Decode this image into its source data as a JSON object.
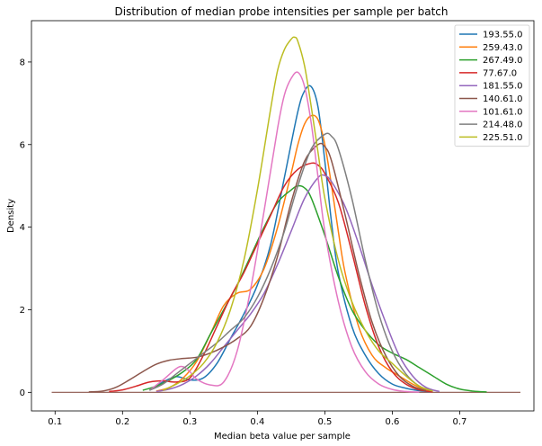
{
  "chart_data": {
    "type": "line",
    "title": "Distribution of median probe intensities per sample per batch",
    "xlabel": "Median beta value per sample",
    "ylabel": "Density",
    "xlim": [
      0.065,
      0.81
    ],
    "ylim": [
      -0.45,
      9.0
    ],
    "xticks": [
      0.1,
      0.2,
      0.3,
      0.4,
      0.5,
      0.6,
      0.7
    ],
    "xtick_labels": [
      "0.1",
      "0.2",
      "0.3",
      "0.4",
      "0.5",
      "0.6",
      "0.7"
    ],
    "yticks": [
      0,
      2,
      4,
      6,
      8
    ],
    "ytick_labels": [
      "0",
      "2",
      "4",
      "6",
      "8"
    ],
    "grid": false,
    "legend_position": "top-right",
    "series": [
      {
        "name": "193.55.0",
        "color": "#1f77b4",
        "x": [
          0.24,
          0.26,
          0.28,
          0.3,
          0.32,
          0.34,
          0.36,
          0.38,
          0.4,
          0.42,
          0.44,
          0.46,
          0.47,
          0.48,
          0.49,
          0.5,
          0.51,
          0.52,
          0.54,
          0.56,
          0.58,
          0.6,
          0.62,
          0.64,
          0.66
        ],
        "y": [
          0.05,
          0.25,
          0.38,
          0.3,
          0.35,
          0.7,
          1.3,
          1.9,
          2.6,
          3.6,
          5.2,
          6.8,
          7.3,
          7.4,
          6.9,
          5.6,
          4.1,
          2.9,
          1.6,
          0.9,
          0.45,
          0.2,
          0.1,
          0.04,
          0.01
        ]
      },
      {
        "name": "259.43.0",
        "color": "#ff7f0e",
        "x": [
          0.25,
          0.27,
          0.29,
          0.31,
          0.33,
          0.35,
          0.37,
          0.39,
          0.41,
          0.43,
          0.45,
          0.46,
          0.47,
          0.48,
          0.49,
          0.5,
          0.51,
          0.52,
          0.53,
          0.55,
          0.57,
          0.59,
          0.61,
          0.63,
          0.65,
          0.66
        ],
        "y": [
          0.03,
          0.12,
          0.35,
          0.75,
          1.4,
          2.1,
          2.4,
          2.5,
          3.0,
          4.0,
          5.3,
          6.0,
          6.5,
          6.7,
          6.6,
          6.0,
          5.0,
          3.9,
          2.9,
          1.6,
          0.9,
          0.6,
          0.4,
          0.2,
          0.05,
          0.01
        ]
      },
      {
        "name": "267.49.0",
        "color": "#2ca02c",
        "x": [
          0.23,
          0.25,
          0.27,
          0.29,
          0.31,
          0.33,
          0.35,
          0.37,
          0.39,
          0.41,
          0.43,
          0.45,
          0.46,
          0.47,
          0.48,
          0.5,
          0.52,
          0.54,
          0.56,
          0.58,
          0.6,
          0.62,
          0.64,
          0.66,
          0.68,
          0.7,
          0.72,
          0.74
        ],
        "y": [
          0.05,
          0.15,
          0.3,
          0.5,
          0.8,
          1.4,
          2.0,
          2.6,
          3.3,
          4.0,
          4.6,
          4.9,
          5.0,
          4.95,
          4.7,
          3.8,
          2.8,
          2.0,
          1.5,
          1.15,
          0.95,
          0.8,
          0.6,
          0.4,
          0.2,
          0.08,
          0.03,
          0.01
        ]
      },
      {
        "name": "77.67.0",
        "color": "#d62728",
        "x": [
          0.18,
          0.2,
          0.22,
          0.24,
          0.26,
          0.28,
          0.3,
          0.32,
          0.34,
          0.36,
          0.38,
          0.4,
          0.42,
          0.44,
          0.46,
          0.48,
          0.49,
          0.5,
          0.52,
          0.54,
          0.56,
          0.58,
          0.6,
          0.62,
          0.64,
          0.66
        ],
        "y": [
          0.02,
          0.06,
          0.15,
          0.25,
          0.28,
          0.25,
          0.35,
          0.9,
          1.6,
          2.3,
          2.9,
          3.6,
          4.3,
          5.0,
          5.4,
          5.55,
          5.5,
          5.3,
          4.6,
          3.4,
          2.1,
          1.1,
          0.5,
          0.2,
          0.06,
          0.01
        ]
      },
      {
        "name": "181.55.0",
        "color": "#9467bd",
        "x": [
          0.25,
          0.27,
          0.29,
          0.31,
          0.33,
          0.35,
          0.37,
          0.39,
          0.41,
          0.43,
          0.45,
          0.47,
          0.49,
          0.5,
          0.51,
          0.53,
          0.55,
          0.57,
          0.59,
          0.61,
          0.63,
          0.65,
          0.67
        ],
        "y": [
          0.02,
          0.08,
          0.2,
          0.4,
          0.7,
          1.1,
          1.5,
          1.9,
          2.4,
          3.1,
          3.9,
          4.7,
          5.2,
          5.25,
          5.1,
          4.5,
          3.6,
          2.6,
          1.7,
          0.9,
          0.4,
          0.12,
          0.02
        ]
      },
      {
        "name": "140.61.0",
        "color": "#8c564b",
        "x": [
          0.15,
          0.17,
          0.19,
          0.21,
          0.23,
          0.25,
          0.27,
          0.29,
          0.31,
          0.33,
          0.35,
          0.37,
          0.39,
          0.41,
          0.43,
          0.45,
          0.47,
          0.49,
          0.5,
          0.51,
          0.53,
          0.55,
          0.57,
          0.59,
          0.61,
          0.63,
          0.65
        ],
        "y": [
          0.01,
          0.03,
          0.12,
          0.3,
          0.5,
          0.68,
          0.78,
          0.82,
          0.85,
          0.95,
          1.1,
          1.3,
          1.6,
          2.3,
          3.3,
          4.6,
          5.6,
          6.0,
          5.95,
          5.6,
          4.3,
          2.9,
          1.7,
          0.9,
          0.4,
          0.15,
          0.04
        ]
      },
      {
        "name": "101.61.0",
        "color": "#e377c2",
        "x": [
          0.24,
          0.26,
          0.28,
          0.29,
          0.3,
          0.31,
          0.33,
          0.35,
          0.37,
          0.39,
          0.41,
          0.43,
          0.44,
          0.45,
          0.46,
          0.47,
          0.48,
          0.49,
          0.5,
          0.52,
          0.54,
          0.56,
          0.58,
          0.6,
          0.62,
          0.64
        ],
        "y": [
          0.05,
          0.3,
          0.58,
          0.62,
          0.5,
          0.32,
          0.18,
          0.25,
          1.0,
          2.5,
          4.4,
          6.4,
          7.2,
          7.6,
          7.75,
          7.4,
          6.5,
          5.2,
          3.9,
          2.2,
          1.1,
          0.5,
          0.2,
          0.07,
          0.02,
          0.005
        ]
      },
      {
        "name": "214.48.0",
        "color": "#7f7f7f",
        "x": [
          0.24,
          0.26,
          0.28,
          0.3,
          0.32,
          0.34,
          0.36,
          0.38,
          0.4,
          0.42,
          0.44,
          0.46,
          0.48,
          0.5,
          0.51,
          0.52,
          0.54,
          0.56,
          0.58,
          0.6,
          0.62,
          0.64,
          0.66
        ],
        "y": [
          0.05,
          0.2,
          0.45,
          0.7,
          0.95,
          1.2,
          1.5,
          1.8,
          2.3,
          3.0,
          3.9,
          5.0,
          5.9,
          6.25,
          6.2,
          5.9,
          4.7,
          3.2,
          1.9,
          1.0,
          0.45,
          0.15,
          0.03
        ]
      },
      {
        "name": "225.51.0",
        "color": "#bcbd22",
        "x": [
          0.26,
          0.28,
          0.3,
          0.32,
          0.34,
          0.36,
          0.38,
          0.4,
          0.42,
          0.43,
          0.44,
          0.45,
          0.455,
          0.46,
          0.47,
          0.48,
          0.49,
          0.5,
          0.52,
          0.54,
          0.56,
          0.58,
          0.6,
          0.62,
          0.64,
          0.66
        ],
        "y": [
          0.05,
          0.2,
          0.4,
          0.7,
          1.2,
          2.0,
          3.2,
          4.9,
          6.9,
          7.8,
          8.3,
          8.55,
          8.6,
          8.5,
          7.9,
          6.9,
          5.8,
          4.7,
          3.2,
          2.2,
          1.5,
          1.0,
          0.7,
          0.4,
          0.15,
          0.03
        ]
      }
    ]
  }
}
